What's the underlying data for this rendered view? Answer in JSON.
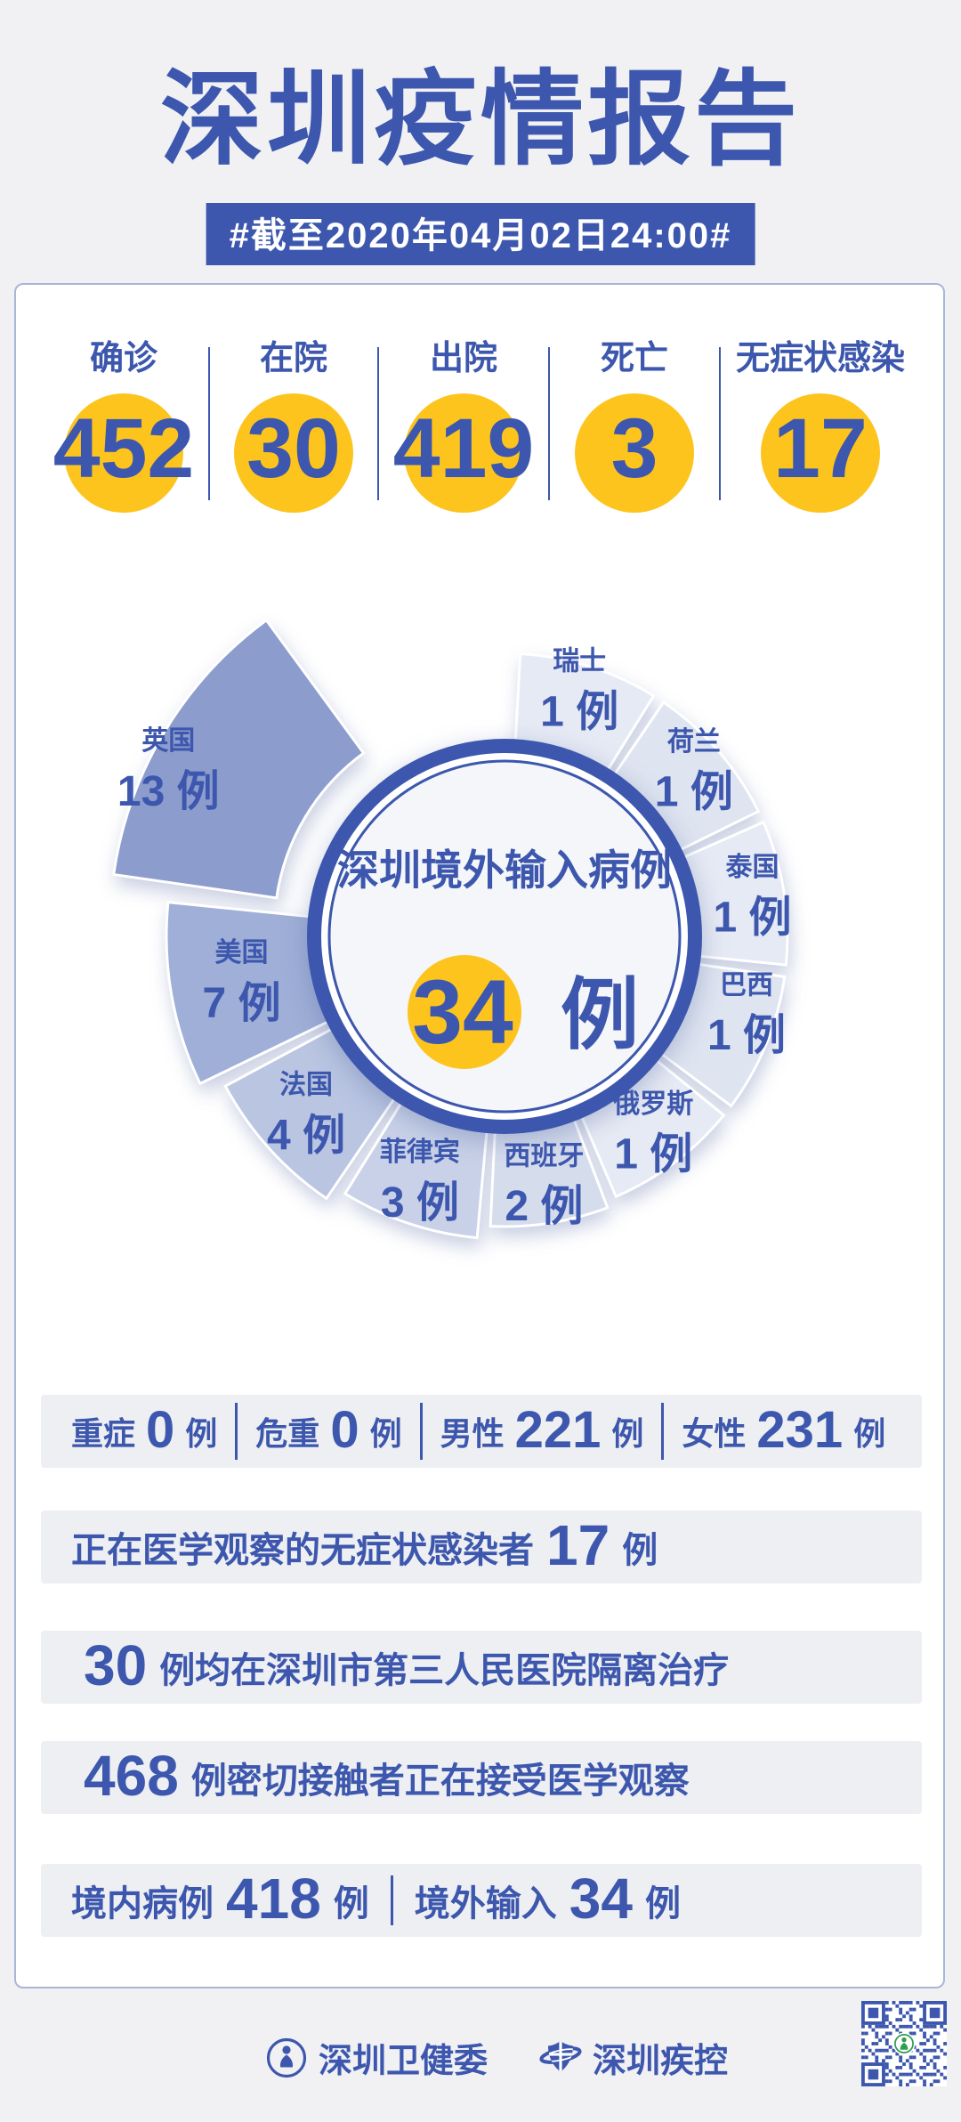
{
  "header": {
    "title": "深圳疫情报告",
    "date_tag": "#截至2020年04月02日24:00#"
  },
  "summary": {
    "items": [
      {
        "label": "确诊",
        "value": "452"
      },
      {
        "label": "在院",
        "value": "30"
      },
      {
        "label": "出院",
        "value": "419"
      },
      {
        "label": "死亡",
        "value": "3"
      },
      {
        "label": "无症状感染",
        "value": "17"
      }
    ]
  },
  "chart_data": {
    "type": "pie",
    "title": "深圳境外输入病例",
    "center_value": "34",
    "center_unit": "例",
    "value_unit": "例",
    "total": 34,
    "categories": [
      "瑞士",
      "荷兰",
      "泰国",
      "巴西",
      "俄罗斯",
      "西班牙",
      "菲律宾",
      "法国",
      "美国",
      "英国"
    ],
    "values": [
      1,
      1,
      1,
      1,
      1,
      2,
      3,
      4,
      7,
      13
    ],
    "legend_position": "on-segment",
    "style": "rose-donut, segment radius grows with value, UK wedge exploded"
  },
  "rows": [
    {
      "size": "sm",
      "parts": [
        {
          "k": "lab",
          "t": "重症"
        },
        {
          "k": "num",
          "t": "0"
        },
        {
          "k": "lab",
          "t": "例"
        },
        {
          "k": "div"
        },
        {
          "k": "lab",
          "t": "危重"
        },
        {
          "k": "num",
          "t": "0"
        },
        {
          "k": "lab",
          "t": "例"
        },
        {
          "k": "div"
        },
        {
          "k": "lab",
          "t": "男性"
        },
        {
          "k": "num",
          "t": "221"
        },
        {
          "k": "lab",
          "t": "例"
        },
        {
          "k": "div"
        },
        {
          "k": "lab",
          "t": "女性"
        },
        {
          "k": "num",
          "t": "231"
        },
        {
          "k": "lab",
          "t": "例"
        }
      ]
    },
    {
      "size": "lg",
      "parts": [
        {
          "k": "lab",
          "t": "正在医学观察的无症状感染者"
        },
        {
          "k": "num",
          "t": "17"
        },
        {
          "k": "lab",
          "t": "例"
        }
      ]
    },
    {
      "size": "lg",
      "parts": [
        {
          "k": "num",
          "t": "30"
        },
        {
          "k": "lab",
          "t": "例均在深圳市第三人民医院隔离治疗"
        }
      ]
    },
    {
      "size": "lg",
      "parts": [
        {
          "k": "num",
          "t": "468"
        },
        {
          "k": "lab",
          "t": "例密切接触者正在接受医学观察"
        }
      ]
    },
    {
      "size": "lg",
      "parts": [
        {
          "k": "lab",
          "t": "境内病例"
        },
        {
          "k": "num",
          "t": "418"
        },
        {
          "k": "lab",
          "t": "例"
        },
        {
          "k": "div"
        },
        {
          "k": "lab",
          "t": "境外输入"
        },
        {
          "k": "num",
          "t": "34"
        },
        {
          "k": "lab",
          "t": "例"
        }
      ]
    }
  ],
  "footer": {
    "org1": "深圳卫健委",
    "org2": "深圳疾控"
  },
  "colors": {
    "primary_blue": "#3C57AD",
    "accent_yellow": "#FDC41E",
    "page_bg": "#F1F1F4",
    "card_border": "#A9B6DA",
    "row_bg": "#EEEFF2",
    "qr_green": "#2E9E4F",
    "wedge_colors": [
      "#E6EAF4",
      "#DEE4F0",
      "#E6EAF4",
      "#DEE4F0",
      "#E6EAF4",
      "#D5DCEC",
      "#C8D1E7",
      "#B9C5E1",
      "#9FAFD7",
      "#8C9CCD"
    ]
  }
}
